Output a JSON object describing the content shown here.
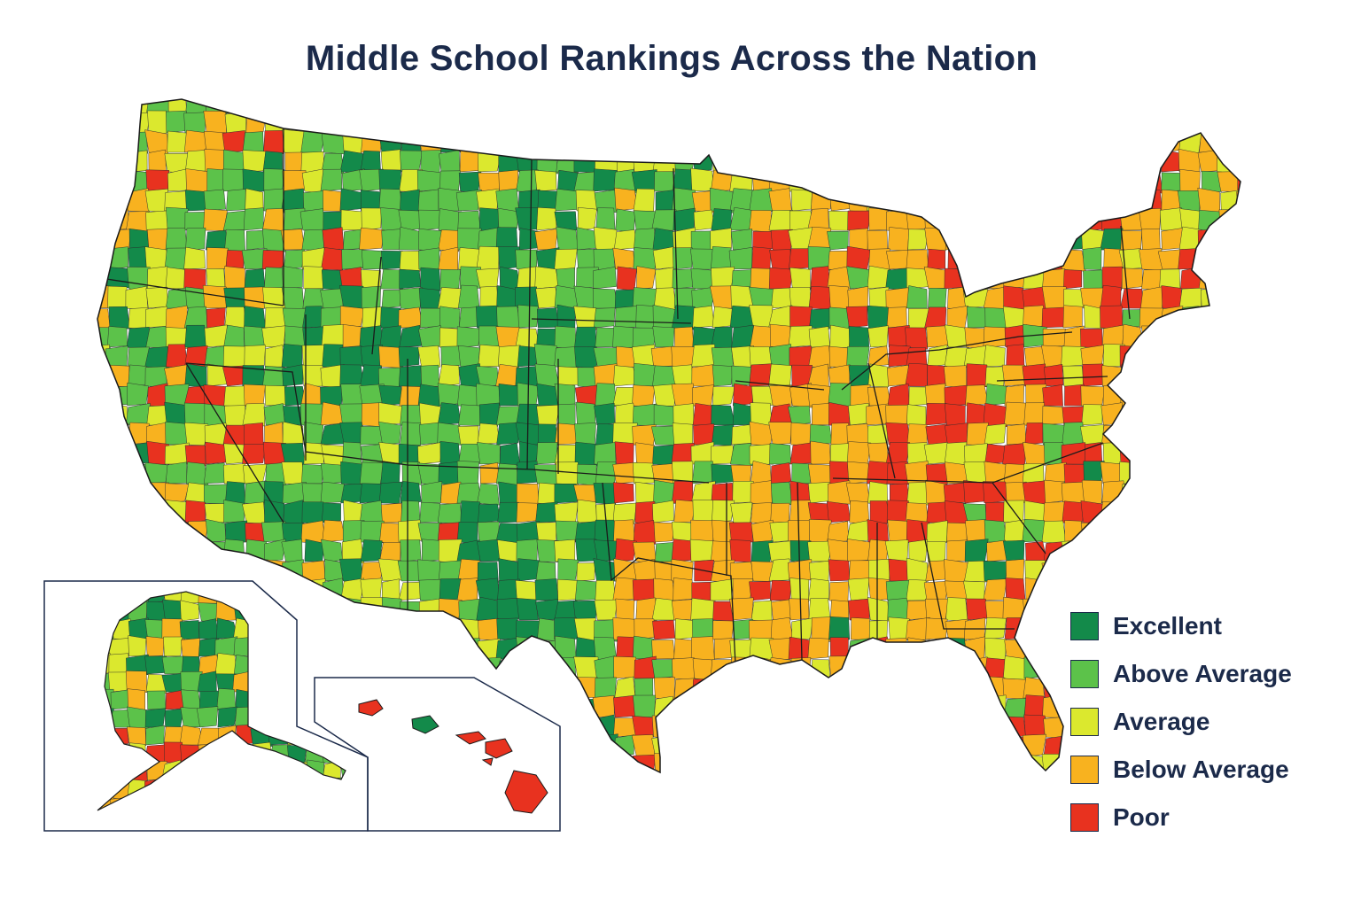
{
  "title": "Middle School Rankings Across the Nation",
  "legend": [
    {
      "label": "Excellent",
      "color": "#138a4a"
    },
    {
      "label": "Above Average",
      "color": "#5cc24a"
    },
    {
      "label": "Average",
      "color": "#dbe82e"
    },
    {
      "label": "Below Average",
      "color": "#f8b21f"
    },
    {
      "label": "Poor",
      "color": "#e8321f"
    }
  ],
  "regions": {
    "pacific_northwest": "mixed-green",
    "northern_plains": "green",
    "mountain_west": "green",
    "southwest": "green",
    "texas_east": "below-average",
    "midwest": "below-average",
    "appalachia": "poor",
    "northeast": "below-average",
    "southeast": "below-average",
    "alaska": "green",
    "alaska_southwest": "poor",
    "hawaii": "poor"
  }
}
